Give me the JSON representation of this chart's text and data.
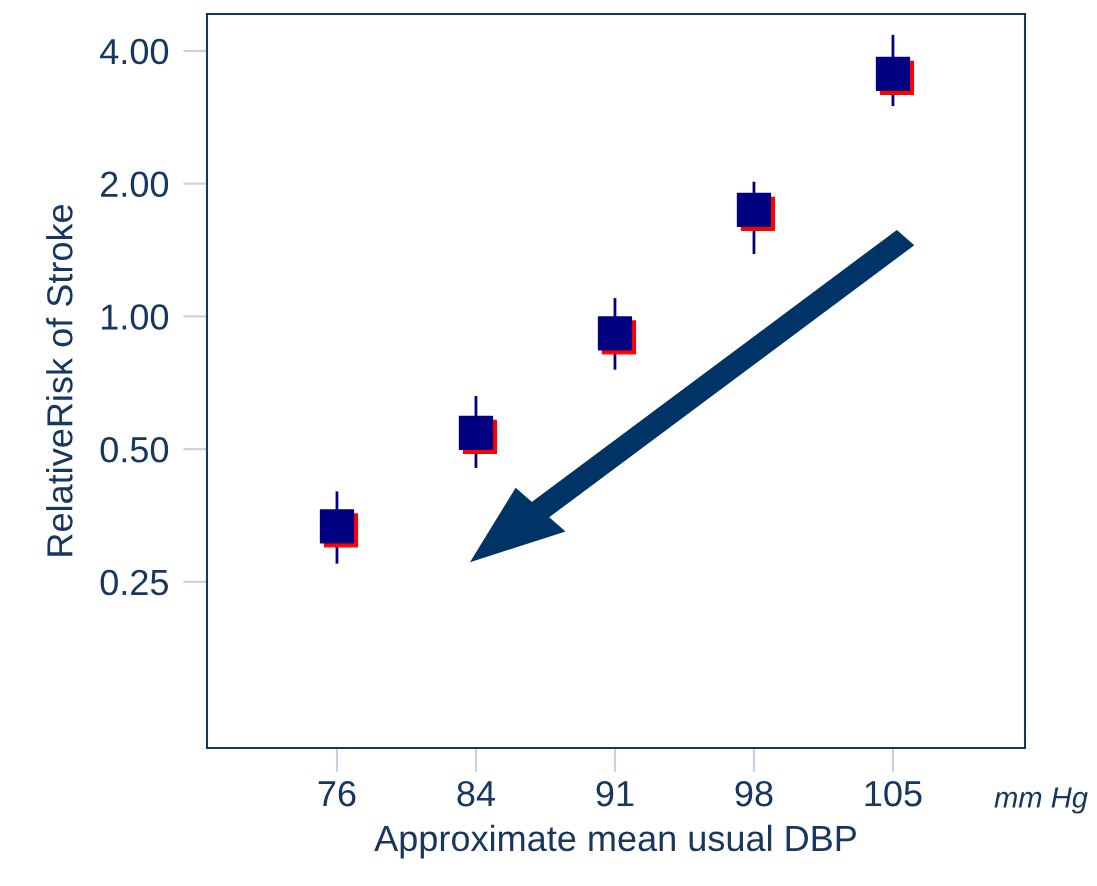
{
  "chart_data": {
    "type": "scatter",
    "xlabel": "Approximate mean usual DBP",
    "ylabel": "RelativeRisk of Stroke",
    "categories": [
      "76",
      "84",
      "91",
      "98",
      "105"
    ],
    "series": [
      {
        "color": "#000080",
        "values": [
          0.334,
          0.544,
          0.915,
          1.745,
          3.55
        ],
        "errors": [
          [
            0.275,
            0.401
          ],
          [
            0.453,
            0.66
          ],
          [
            0.757,
            1.1
          ],
          [
            1.385,
            2.02
          ],
          [
            3.0,
            4.35
          ]
        ]
      }
    ],
    "log": "y",
    "ylim": [
      0.105,
      4.85
    ],
    "yticks": [
      {
        "value": 0.25,
        "label": "0.25"
      },
      {
        "value": 0.5,
        "label": "0.50"
      },
      {
        "value": 1,
        "label": "1.00"
      },
      {
        "value": 2,
        "label": "2.00"
      },
      {
        "value": 4,
        "label": "4.00"
      }
    ],
    "marker": "square",
    "grid": false,
    "annotations": [
      "mm Hg"
    ]
  }
}
